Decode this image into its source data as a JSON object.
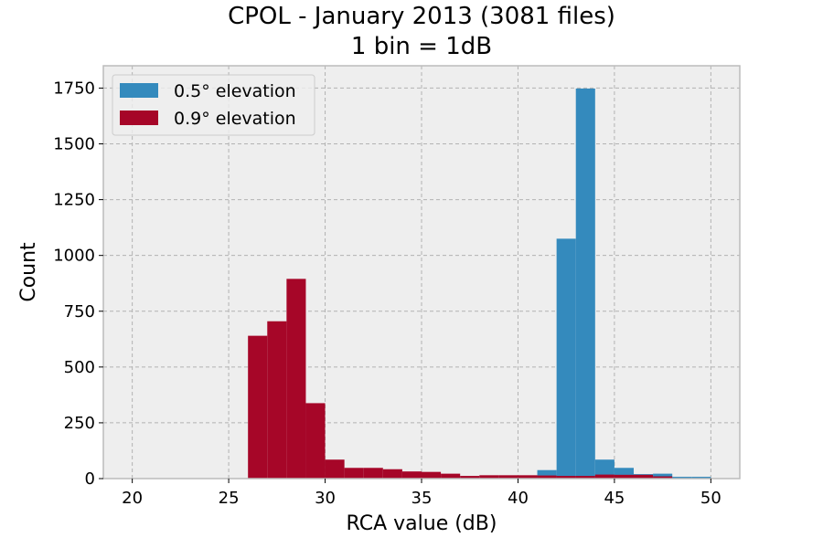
{
  "chart_data": {
    "type": "bar",
    "title": "CPOL - January 2013 (3081 files)",
    "subtitle": "1 bin = 1dB",
    "xlabel": "RCA value (dB)",
    "ylabel": "Count",
    "xlim": [
      18.5,
      51.5
    ],
    "ylim": [
      0,
      1850
    ],
    "xticks": [
      20,
      25,
      30,
      35,
      40,
      45,
      50
    ],
    "yticks": [
      0,
      250,
      500,
      750,
      1000,
      1250,
      1500,
      1750
    ],
    "grid": true,
    "legend_position": "top-left",
    "bin_width": 1,
    "bin_starts": [
      26,
      27,
      28,
      29,
      30,
      31,
      32,
      33,
      34,
      35,
      36,
      37,
      38,
      39,
      40,
      41,
      42,
      43,
      44,
      45,
      46,
      47,
      48,
      49
    ],
    "series": [
      {
        "name": "0.5° elevation",
        "color": "#348abd",
        "values": [
          0,
          0,
          0,
          0,
          0,
          0,
          0,
          0,
          0,
          0,
          0,
          0,
          0,
          0,
          0,
          38,
          1075,
          1748,
          85,
          48,
          20,
          22,
          8,
          8
        ]
      },
      {
        "name": "0.9° elevation",
        "color": "#a60628",
        "values": [
          640,
          705,
          895,
          338,
          85,
          48,
          48,
          42,
          32,
          30,
          22,
          12,
          15,
          15,
          15,
          14,
          12,
          12,
          18,
          17,
          17,
          10,
          0,
          0
        ]
      }
    ]
  }
}
